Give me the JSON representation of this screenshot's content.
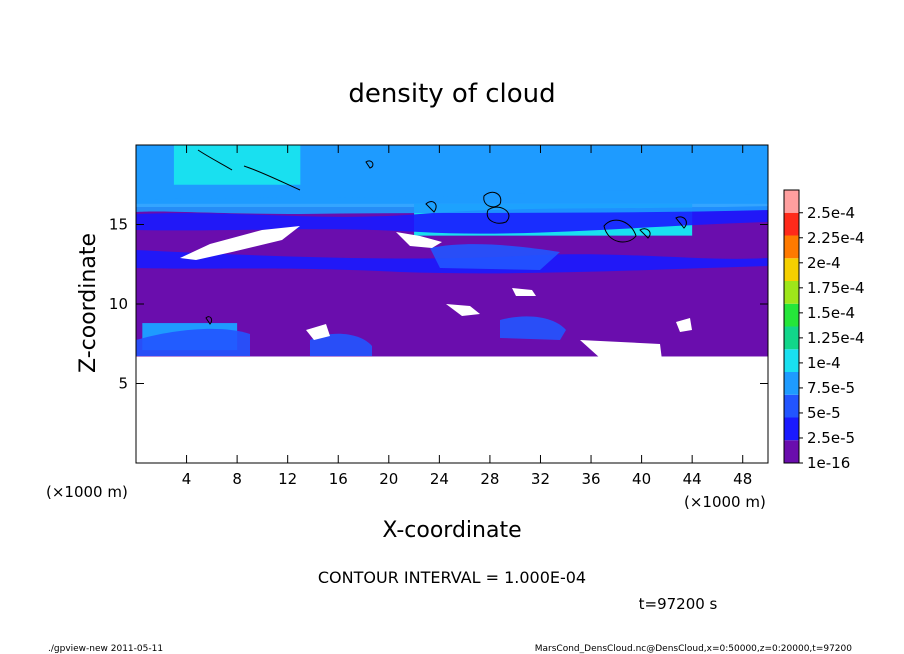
{
  "chart_data": {
    "type": "heatmap",
    "title": "density of cloud",
    "xlabel": "X-coordinate",
    "ylabel": "Z-coordinate",
    "x_unit_left": "(×1000 m)",
    "x_unit_right": "(×1000 m)",
    "xlim": [
      0,
      50
    ],
    "ylim": [
      0,
      20
    ],
    "xticks": [
      4,
      8,
      12,
      16,
      20,
      24,
      28,
      32,
      36,
      40,
      44,
      48
    ],
    "yticks": [
      5,
      10,
      15
    ],
    "contour_interval": "CONTOUR INTERVAL = 1.000E-04",
    "time_label": "t=97200 s",
    "colorbar": {
      "levels": [
        "1e-16",
        "2.5e-5",
        "5e-5",
        "7.5e-5",
        "1e-4",
        "1.25e-4",
        "1.5e-4",
        "1.75e-4",
        "2e-4",
        "2.25e-4",
        "2.5e-4"
      ],
      "colors": [
        "#6a0dad",
        "#1a1aff",
        "#2255ff",
        "#1e9bff",
        "#19e0f0",
        "#12d68a",
        "#25e63a",
        "#9ee61a",
        "#f5d000",
        "#ff7a00",
        "#ff2a1a",
        "#ff9f9f"
      ]
    },
    "regions": [
      {
        "level": 0,
        "x": [
          0,
          50
        ],
        "z": [
          6.7,
          16.1
        ]
      },
      {
        "level": 3,
        "x": [
          0,
          50
        ],
        "z": [
          16.3,
          20
        ]
      },
      {
        "level": 4,
        "x": [
          3,
          13
        ],
        "z": [
          17.5,
          20
        ]
      },
      {
        "level": 4,
        "x": [
          22,
          44
        ],
        "z": [
          14.3,
          16.3
        ]
      },
      {
        "level": 3,
        "x": [
          0.5,
          8
        ],
        "z": [
          7.1,
          8.8
        ]
      }
    ]
  },
  "footer": {
    "left": "./gpview-new   2011-05-11",
    "right": "MarsCond_DensCloud.nc@DensCloud,x=0:50000,z=0:20000,t=97200"
  }
}
